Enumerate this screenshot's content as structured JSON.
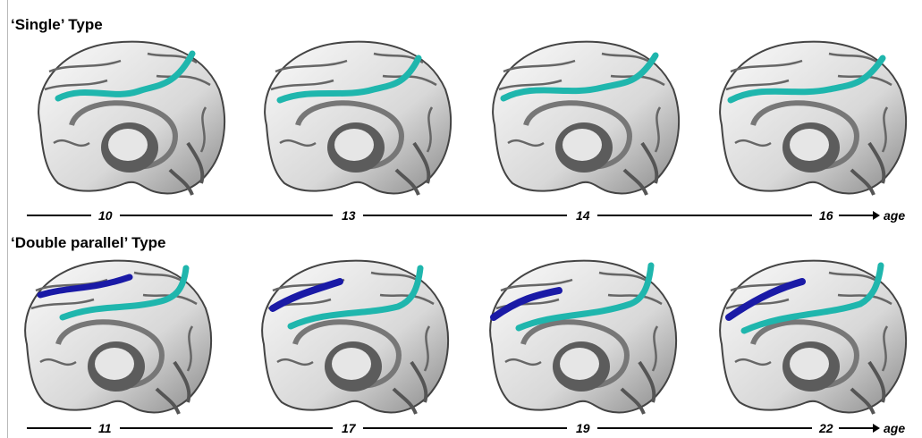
{
  "sections": [
    {
      "title": "‘Single’ Type",
      "ages": [
        "10",
        "13",
        "14",
        "16"
      ],
      "axis_label": "age",
      "sulci_colors": [
        "#1fb6ad"
      ]
    },
    {
      "title": "‘Double parallel’ Type",
      "ages": [
        "11",
        "17",
        "19",
        "22"
      ],
      "axis_label": "age",
      "sulci_colors": [
        "#1fb6ad",
        "#1a1aa6"
      ]
    }
  ],
  "colors": {
    "cingulate_sulcus": "#1fb6ad",
    "paracingulate_sulcus": "#1a1aa6",
    "cortex_light": "#f2f2f2",
    "cortex_dark": "#555555"
  }
}
